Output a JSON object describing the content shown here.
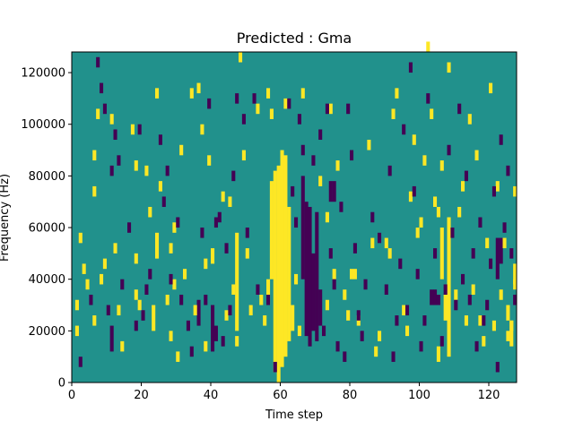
{
  "chart_data": {
    "type": "heatmap",
    "title": "Predicted : Gma",
    "xlabel": "Time step",
    "ylabel": "Frequency (Hz)",
    "xlim": [
      0,
      128
    ],
    "ylim": [
      0,
      128000
    ],
    "x_ticks": [
      0,
      20,
      40,
      60,
      80,
      100,
      120
    ],
    "y_ticks": [
      0,
      20000,
      40000,
      60000,
      80000,
      100000,
      120000
    ],
    "x_tick_labels": [
      "0",
      "20",
      "40",
      "60",
      "80",
      "100",
      "120"
    ],
    "y_tick_labels": [
      "0",
      "20000",
      "40000",
      "60000",
      "80000",
      "100000",
      "120000"
    ],
    "n_time_steps": 128,
    "n_freq_bins": 64,
    "bin_width_hz": 2000,
    "colors": {
      "background": "#21918c",
      "high": "#fde725",
      "low": "#440154"
    },
    "high_spans": [
      {
        "t": 59,
        "f": [
          0,
          84000
        ]
      },
      {
        "t": 60,
        "f": [
          6000,
          90000
        ]
      },
      {
        "t": 61,
        "f": [
          10000,
          88000
        ]
      },
      {
        "t": 62,
        "f": [
          16000,
          68000
        ]
      },
      {
        "t": 58,
        "f": [
          4000,
          82000
        ]
      },
      {
        "t": 57,
        "f": [
          40000,
          78000
        ]
      },
      {
        "t": 56,
        "f": [
          30000,
          40000
        ]
      },
      {
        "t": 63,
        "f": [
          20000,
          30000
        ]
      },
      {
        "t": 107,
        "f": [
          24000,
          34000
        ]
      },
      {
        "t": 108,
        "f": [
          10000,
          64000
        ]
      },
      {
        "t": 106,
        "f": [
          40000,
          60000
        ]
      },
      {
        "t": 105,
        "f": [
          8000,
          14000
        ]
      },
      {
        "t": 24,
        "f": [
          48000,
          58000
        ]
      },
      {
        "t": 23,
        "f": [
          20000,
          30000
        ]
      },
      {
        "t": 47,
        "f": [
          20000,
          58000
        ]
      },
      {
        "t": 125,
        "f": [
          24000,
          30000
        ]
      },
      {
        "t": 126,
        "f": [
          14000,
          24000
        ]
      },
      {
        "t": 127,
        "f": [
          38000,
          46000
        ]
      },
      {
        "t": 40,
        "f": [
          46000,
          52000
        ]
      }
    ],
    "low_spans": [
      {
        "t": 67,
        "f": [
          18000,
          70000
        ]
      },
      {
        "t": 68,
        "f": [
          14000,
          68000
        ]
      },
      {
        "t": 69,
        "f": [
          20000,
          50000
        ]
      },
      {
        "t": 70,
        "f": [
          16000,
          66000
        ]
      },
      {
        "t": 71,
        "f": [
          22000,
          36000
        ]
      },
      {
        "t": 66,
        "f": [
          40000,
          80000
        ]
      },
      {
        "t": 74,
        "f": [
          70000,
          78000
        ]
      },
      {
        "t": 75,
        "f": [
          70000,
          78000
        ]
      },
      {
        "t": 40,
        "f": [
          12000,
          30000
        ]
      },
      {
        "t": 41,
        "f": [
          16000,
          22000
        ]
      },
      {
        "t": 104,
        "f": [
          30000,
          36000
        ]
      },
      {
        "t": 103,
        "f": [
          30000,
          36000
        ]
      },
      {
        "t": 122,
        "f": [
          40000,
          56000
        ]
      },
      {
        "t": 123,
        "f": [
          46000,
          56000
        ]
      },
      {
        "t": 11,
        "f": [
          12000,
          22000
        ]
      },
      {
        "t": 36,
        "f": [
          26000,
          32000
        ]
      }
    ],
    "high_cells": [
      [
        1,
        28000
      ],
      [
        1,
        18000
      ],
      [
        2,
        54000
      ],
      [
        3,
        42000
      ],
      [
        4,
        36000
      ],
      [
        6,
        86000
      ],
      [
        6,
        72000
      ],
      [
        6,
        22000
      ],
      [
        7,
        102000
      ],
      [
        8,
        38000
      ],
      [
        9,
        44000
      ],
      [
        11,
        100000
      ],
      [
        12,
        50000
      ],
      [
        13,
        26000
      ],
      [
        14,
        12000
      ],
      [
        17,
        96000
      ],
      [
        18,
        82000
      ],
      [
        18,
        46000
      ],
      [
        18,
        32000
      ],
      [
        19,
        28000
      ],
      [
        21,
        80000
      ],
      [
        22,
        64000
      ],
      [
        24,
        110000
      ],
      [
        25,
        74000
      ],
      [
        27,
        30000
      ],
      [
        28,
        50000
      ],
      [
        28,
        16000
      ],
      [
        29,
        58000
      ],
      [
        29,
        36000
      ],
      [
        30,
        8000
      ],
      [
        31,
        88000
      ],
      [
        32,
        40000
      ],
      [
        34,
        110000
      ],
      [
        35,
        26000
      ],
      [
        36,
        112000
      ],
      [
        37,
        96000
      ],
      [
        38,
        12000
      ],
      [
        38,
        44000
      ],
      [
        39,
        84000
      ],
      [
        43,
        70000
      ],
      [
        44,
        24000
      ],
      [
        45,
        68000
      ],
      [
        46,
        34000
      ],
      [
        47,
        14000
      ],
      [
        48,
        124000
      ],
      [
        49,
        86000
      ],
      [
        50,
        48000
      ],
      [
        51,
        26000
      ],
      [
        53,
        104000
      ],
      [
        54,
        30000
      ],
      [
        55,
        22000
      ],
      [
        56,
        110000
      ],
      [
        57,
        102000
      ],
      [
        61,
        106000
      ],
      [
        64,
        38000
      ],
      [
        65,
        18000
      ],
      [
        66,
        110000
      ],
      [
        71,
        76000
      ],
      [
        73,
        62000
      ],
      [
        73,
        28000
      ],
      [
        74,
        104000
      ],
      [
        75,
        40000
      ],
      [
        76,
        82000
      ],
      [
        78,
        32000
      ],
      [
        79,
        24000
      ],
      [
        80,
        40000
      ],
      [
        81,
        40000
      ],
      [
        82,
        22000
      ],
      [
        85,
        90000
      ],
      [
        86,
        52000
      ],
      [
        87,
        10000
      ],
      [
        88,
        16000
      ],
      [
        90,
        52000
      ],
      [
        91,
        48000
      ],
      [
        92,
        102000
      ],
      [
        93,
        110000
      ],
      [
        95,
        26000
      ],
      [
        96,
        18000
      ],
      [
        97,
        70000
      ],
      [
        98,
        92000
      ],
      [
        99,
        56000
      ],
      [
        100,
        60000
      ],
      [
        101,
        84000
      ],
      [
        102,
        128000
      ],
      [
        103,
        102000
      ],
      [
        104,
        68000
      ],
      [
        105,
        64000
      ],
      [
        106,
        82000
      ],
      [
        108,
        120000
      ],
      [
        110,
        32000
      ],
      [
        111,
        64000
      ],
      [
        112,
        74000
      ],
      [
        113,
        22000
      ],
      [
        114,
        100000
      ],
      [
        115,
        34000
      ],
      [
        116,
        86000
      ],
      [
        117,
        22000
      ],
      [
        118,
        14000
      ],
      [
        119,
        52000
      ],
      [
        120,
        112000
      ],
      [
        121,
        20000
      ],
      [
        122,
        74000
      ],
      [
        123,
        32000
      ],
      [
        124,
        52000
      ],
      [
        125,
        16000
      ],
      [
        126,
        20000
      ],
      [
        127,
        36000
      ],
      [
        127,
        72000
      ]
    ],
    "low_cells": [
      [
        2,
        6000
      ],
      [
        5,
        30000
      ],
      [
        7,
        122000
      ],
      [
        8,
        112000
      ],
      [
        9,
        104000
      ],
      [
        10,
        26000
      ],
      [
        11,
        80000
      ],
      [
        12,
        94000
      ],
      [
        13,
        84000
      ],
      [
        14,
        36000
      ],
      [
        16,
        58000
      ],
      [
        18,
        20000
      ],
      [
        19,
        96000
      ],
      [
        20,
        24000
      ],
      [
        21,
        34000
      ],
      [
        22,
        40000
      ],
      [
        25,
        92000
      ],
      [
        26,
        68000
      ],
      [
        27,
        80000
      ],
      [
        28,
        38000
      ],
      [
        30,
        60000
      ],
      [
        31,
        30000
      ],
      [
        33,
        20000
      ],
      [
        34,
        10000
      ],
      [
        36,
        22000
      ],
      [
        37,
        56000
      ],
      [
        38,
        30000
      ],
      [
        39,
        106000
      ],
      [
        41,
        60000
      ],
      [
        42,
        62000
      ],
      [
        43,
        14000
      ],
      [
        44,
        50000
      ],
      [
        45,
        26000
      ],
      [
        46,
        78000
      ],
      [
        47,
        108000
      ],
      [
        49,
        100000
      ],
      [
        50,
        56000
      ],
      [
        52,
        108000
      ],
      [
        53,
        34000
      ],
      [
        56,
        30000
      ],
      [
        58,
        4000
      ],
      [
        62,
        106000
      ],
      [
        63,
        72000
      ],
      [
        64,
        60000
      ],
      [
        65,
        100000
      ],
      [
        66,
        88000
      ],
      [
        69,
        84000
      ],
      [
        71,
        94000
      ],
      [
        72,
        18000
      ],
      [
        73,
        104000
      ],
      [
        74,
        48000
      ],
      [
        75,
        36000
      ],
      [
        76,
        12000
      ],
      [
        77,
        66000
      ],
      [
        78,
        8000
      ],
      [
        79,
        104000
      ],
      [
        80,
        86000
      ],
      [
        81,
        50000
      ],
      [
        82,
        24000
      ],
      [
        83,
        16000
      ],
      [
        84,
        36000
      ],
      [
        86,
        62000
      ],
      [
        88,
        54000
      ],
      [
        90,
        34000
      ],
      [
        91,
        80000
      ],
      [
        92,
        8000
      ],
      [
        93,
        22000
      ],
      [
        94,
        44000
      ],
      [
        95,
        96000
      ],
      [
        96,
        26000
      ],
      [
        97,
        120000
      ],
      [
        98,
        72000
      ],
      [
        99,
        40000
      ],
      [
        100,
        12000
      ],
      [
        101,
        22000
      ],
      [
        102,
        108000
      ],
      [
        104,
        48000
      ],
      [
        105,
        30000
      ],
      [
        106,
        14000
      ],
      [
        107,
        34000
      ],
      [
        108,
        88000
      ],
      [
        109,
        56000
      ],
      [
        110,
        28000
      ],
      [
        111,
        104000
      ],
      [
        112,
        38000
      ],
      [
        113,
        78000
      ],
      [
        114,
        30000
      ],
      [
        115,
        48000
      ],
      [
        116,
        12000
      ],
      [
        117,
        60000
      ],
      [
        118,
        22000
      ],
      [
        119,
        28000
      ],
      [
        120,
        44000
      ],
      [
        121,
        72000
      ],
      [
        122,
        4000
      ],
      [
        123,
        92000
      ],
      [
        124,
        58000
      ],
      [
        125,
        80000
      ],
      [
        126,
        48000
      ],
      [
        127,
        30000
      ]
    ]
  }
}
